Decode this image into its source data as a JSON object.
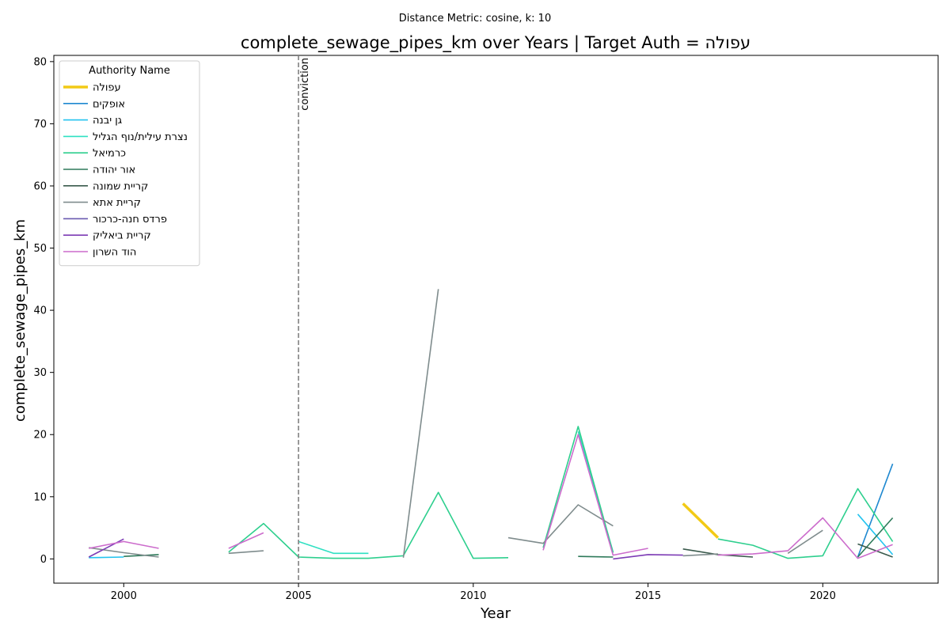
{
  "chart_data": {
    "type": "line",
    "suptitle": "Distance Metric: cosine, k: 10",
    "title": "complete_sewage_pipes_km over Years | Target Auth = עפולה",
    "xlabel": "Year",
    "ylabel": "complete_sewage_pipes_km",
    "xlim": [
      1998,
      2023.3
    ],
    "ylim": [
      -3.9,
      81
    ],
    "xticks": [
      2000,
      2005,
      2010,
      2015,
      2020
    ],
    "yticks": [
      0,
      10,
      20,
      30,
      40,
      50,
      60,
      70,
      80
    ],
    "grid": false,
    "legend": {
      "title": "Authority Name",
      "placement": "top-left"
    },
    "vline": {
      "x": 2005,
      "label": "conviction",
      "color": "#808080"
    },
    "series": [
      {
        "name": "עפולה",
        "color": "#f2ca16",
        "width": 3.5,
        "segments": [
          [
            [
              2016,
              8.9
            ],
            [
              2017,
              3.4
            ]
          ]
        ]
      },
      {
        "name": "אופקים",
        "color": "#1e88d0",
        "width": 1.6,
        "segments": [
          [
            [
              2021,
              0.3
            ],
            [
              2022,
              15.3
            ]
          ]
        ]
      },
      {
        "name": "גן יבנה",
        "color": "#22c3ef",
        "width": 1.6,
        "segments": [
          [
            [
              1999,
              0.2
            ],
            [
              2000,
              0.3
            ]
          ],
          [
            [
              2021,
              7.2
            ],
            [
              2022,
              0.7
            ]
          ]
        ]
      },
      {
        "name": "נצרת עילית/נוף הגליל",
        "color": "#2ee0c2",
        "width": 1.6,
        "segments": [
          [
            [
              2005,
              2.8
            ],
            [
              2006,
              0.9
            ],
            [
              2007,
              0.9
            ]
          ],
          [
            [
              2013,
              20.5
            ],
            [
              2014,
              1.1
            ]
          ]
        ]
      },
      {
        "name": "כרמיאל",
        "color": "#2ecf8e",
        "width": 1.6,
        "segments": [
          [
            [
              2003,
              1.1
            ],
            [
              2004,
              5.7
            ],
            [
              2005,
              0.3
            ],
            [
              2006,
              0.1
            ],
            [
              2007,
              0.1
            ],
            [
              2008,
              0.5
            ],
            [
              2009,
              10.7
            ],
            [
              2010,
              0.1
            ],
            [
              2011,
              0.2
            ]
          ],
          [
            [
              2012,
              1.8
            ],
            [
              2013,
              21.3
            ],
            [
              2014,
              1.0
            ]
          ],
          [
            [
              2017,
              3.2
            ],
            [
              2018,
              2.2
            ],
            [
              2019,
              0.1
            ],
            [
              2020,
              0.5
            ],
            [
              2021,
              11.3
            ],
            [
              2022,
              2.8
            ]
          ]
        ]
      },
      {
        "name": "אור יהודה",
        "color": "#2e7a5a",
        "width": 1.6,
        "segments": [
          [
            [
              2000,
              0.4
            ],
            [
              2001,
              0.7
            ]
          ],
          [
            [
              2013,
              0.4
            ],
            [
              2014,
              0.3
            ]
          ],
          [
            [
              2021,
              0.3
            ],
            [
              2022,
              6.6
            ]
          ]
        ]
      },
      {
        "name": "קריית שמונה",
        "color": "#3a5a4c",
        "width": 1.6,
        "segments": [
          [
            [
              2016,
              1.6
            ],
            [
              2017,
              0.7
            ],
            [
              2018,
              0.3
            ]
          ],
          [
            [
              2021,
              2.4
            ],
            [
              2022,
              0.3
            ]
          ]
        ]
      },
      {
        "name": "קריית אתא",
        "color": "#7f8c8d",
        "width": 1.6,
        "segments": [
          [
            [
              1999,
              1.8
            ],
            [
              2000,
              1.0
            ],
            [
              2001,
              0.3
            ]
          ],
          [
            [
              2003,
              0.9
            ],
            [
              2004,
              1.3
            ]
          ],
          [
            [
              2008,
              0.2
            ],
            [
              2009,
              43.4
            ]
          ],
          [
            [
              2011,
              3.4
            ],
            [
              2012,
              2.5
            ],
            [
              2013,
              8.7
            ],
            [
              2014,
              5.3
            ]
          ],
          [
            [
              2016,
              0.5
            ],
            [
              2017,
              0.8
            ]
          ],
          [
            [
              2019,
              0.9
            ],
            [
              2020,
              4.6
            ]
          ]
        ]
      },
      {
        "name": "פרדס חנה-כרכור",
        "color": "#6a5ab0",
        "width": 1.6,
        "segments": []
      },
      {
        "name": "קריית ביאליק",
        "color": "#7d3cb5",
        "width": 1.6,
        "segments": [
          [
            [
              1999,
              0.3
            ],
            [
              2000,
              3.2
            ]
          ],
          [
            [
              2014,
              0.0
            ],
            [
              2015,
              0.7
            ],
            [
              2016,
              0.6
            ]
          ]
        ]
      },
      {
        "name": "הוד השרון",
        "color": "#cc6ccc",
        "width": 1.6,
        "segments": [
          [
            [
              1999,
              1.7
            ],
            [
              2000,
              2.8
            ],
            [
              2001,
              1.7
            ]
          ],
          [
            [
              2003,
              1.7
            ],
            [
              2004,
              4.2
            ]
          ],
          [
            [
              2012,
              1.4
            ],
            [
              2013,
              20.0
            ],
            [
              2014,
              0.6
            ],
            [
              2015,
              1.7
            ]
          ],
          [
            [
              2017,
              0.6
            ],
            [
              2018,
              0.8
            ],
            [
              2019,
              1.3
            ],
            [
              2020,
              6.6
            ],
            [
              2021,
              0.1
            ],
            [
              2022,
              2.3
            ]
          ]
        ]
      }
    ]
  }
}
